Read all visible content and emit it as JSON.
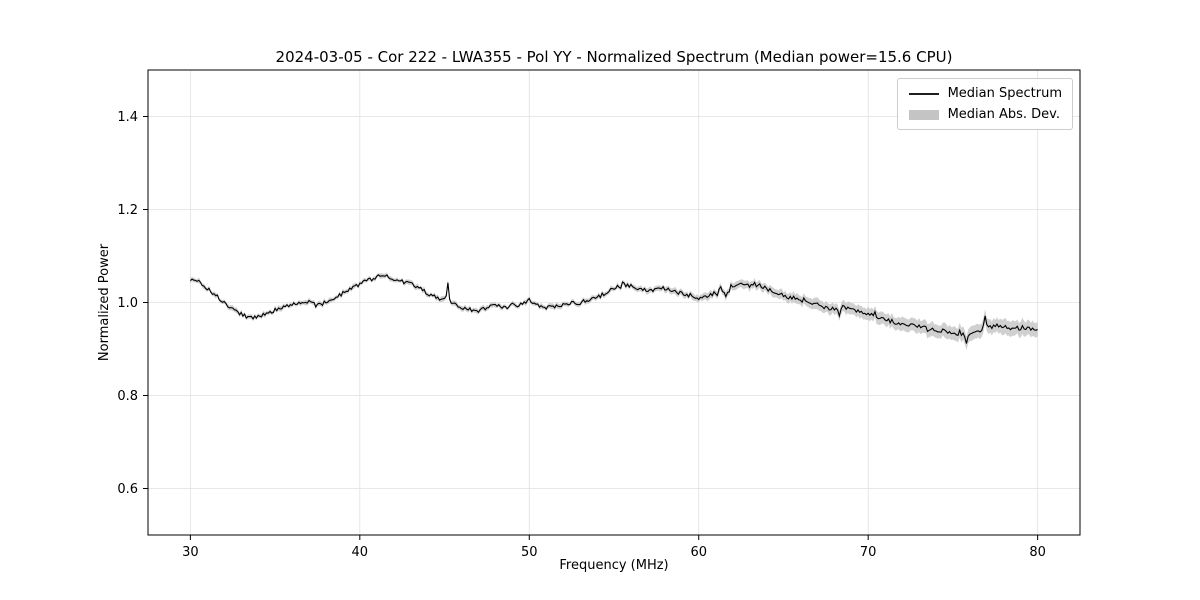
{
  "chart_data": {
    "type": "line",
    "title": "2024-03-05 - Cor 222 - LWA355 - Pol YY - Normalized Spectrum (Median power=15.6 CPU)",
    "xlabel": "Frequency (MHz)",
    "ylabel": "Normalized Power",
    "xlim": [
      27.5,
      82.5
    ],
    "ylim": [
      0.5,
      1.5
    ],
    "xticks": [
      30,
      40,
      50,
      60,
      70,
      80
    ],
    "yticks": [
      0.6,
      0.8,
      1.0,
      1.2,
      1.4
    ],
    "grid": true,
    "legend_position": "upper right",
    "line_color": "#000000",
    "band_color": "#c4c4c4",
    "grid_color": "#e0e0e0",
    "noise_amplitude": 0.0045,
    "series": [
      {
        "name": "Median Spectrum",
        "type": "line",
        "x": [
          30.0,
          30.5,
          31.0,
          31.5,
          32.0,
          32.5,
          33.0,
          33.5,
          34.0,
          34.5,
          35.0,
          35.5,
          36.0,
          36.5,
          37.0,
          37.5,
          38.0,
          38.5,
          39.0,
          39.5,
          40.0,
          40.5,
          41.0,
          41.5,
          42.0,
          42.5,
          43.0,
          43.5,
          44.0,
          44.5,
          45.0,
          45.5,
          46.0,
          46.5,
          47.0,
          47.5,
          48.0,
          48.5,
          49.0,
          49.5,
          50.0,
          50.5,
          51.0,
          51.5,
          52.0,
          52.5,
          53.0,
          53.5,
          54.0,
          54.5,
          55.0,
          55.5,
          56.0,
          56.5,
          57.0,
          57.5,
          58.0,
          58.5,
          59.0,
          59.5,
          60.0,
          60.5,
          61.0,
          61.5,
          62.0,
          62.5,
          63.0,
          63.5,
          64.0,
          64.5,
          65.0,
          65.5,
          66.0,
          66.5,
          67.0,
          67.5,
          68.0,
          68.5,
          69.0,
          69.5,
          70.0,
          70.5,
          71.0,
          71.5,
          72.0,
          72.5,
          73.0,
          73.5,
          74.0,
          74.5,
          75.0,
          75.5,
          76.0,
          76.5,
          77.0,
          77.5,
          78.0,
          78.5,
          79.0,
          79.5,
          80.0
        ],
        "y": [
          1.05,
          1.045,
          1.03,
          1.015,
          1.0,
          0.985,
          0.975,
          0.968,
          0.97,
          0.975,
          0.985,
          0.99,
          0.995,
          1.0,
          1.0,
          0.993,
          1.0,
          1.01,
          1.02,
          1.03,
          1.04,
          1.048,
          1.055,
          1.058,
          1.05,
          1.045,
          1.04,
          1.03,
          1.02,
          1.012,
          1.005,
          1.0,
          0.99,
          0.985,
          0.983,
          0.988,
          0.993,
          0.99,
          0.993,
          0.995,
          1.0,
          0.995,
          0.99,
          0.99,
          0.995,
          1.0,
          1.0,
          1.005,
          1.01,
          1.02,
          1.03,
          1.04,
          1.035,
          1.028,
          1.025,
          1.03,
          1.03,
          1.025,
          1.02,
          1.015,
          1.01,
          1.015,
          1.02,
          1.03,
          1.035,
          1.038,
          1.04,
          1.038,
          1.03,
          1.02,
          1.015,
          1.01,
          1.005,
          1.0,
          0.995,
          0.99,
          0.985,
          0.99,
          0.985,
          0.98,
          0.975,
          0.97,
          0.965,
          0.96,
          0.955,
          0.95,
          0.95,
          0.945,
          0.94,
          0.94,
          0.935,
          0.93,
          0.935,
          0.94,
          0.945,
          0.95,
          0.95,
          0.945,
          0.945,
          0.945,
          0.94
        ]
      },
      {
        "name": "Median Abs. Dev.",
        "type": "band",
        "mad_x": [
          30,
          55,
          60,
          63,
          65,
          70,
          75,
          80
        ],
        "mad": [
          0.005,
          0.005,
          0.007,
          0.009,
          0.01,
          0.013,
          0.015,
          0.016
        ]
      }
    ],
    "spikes": [
      {
        "x": 45.2,
        "dy": 0.04
      },
      {
        "x": 50.0,
        "dy": 0.013
      },
      {
        "x": 61.6,
        "dy": -0.018
      },
      {
        "x": 68.3,
        "dy": -0.014
      },
      {
        "x": 75.8,
        "dy": -0.018
      },
      {
        "x": 76.9,
        "dy": 0.03
      }
    ]
  }
}
